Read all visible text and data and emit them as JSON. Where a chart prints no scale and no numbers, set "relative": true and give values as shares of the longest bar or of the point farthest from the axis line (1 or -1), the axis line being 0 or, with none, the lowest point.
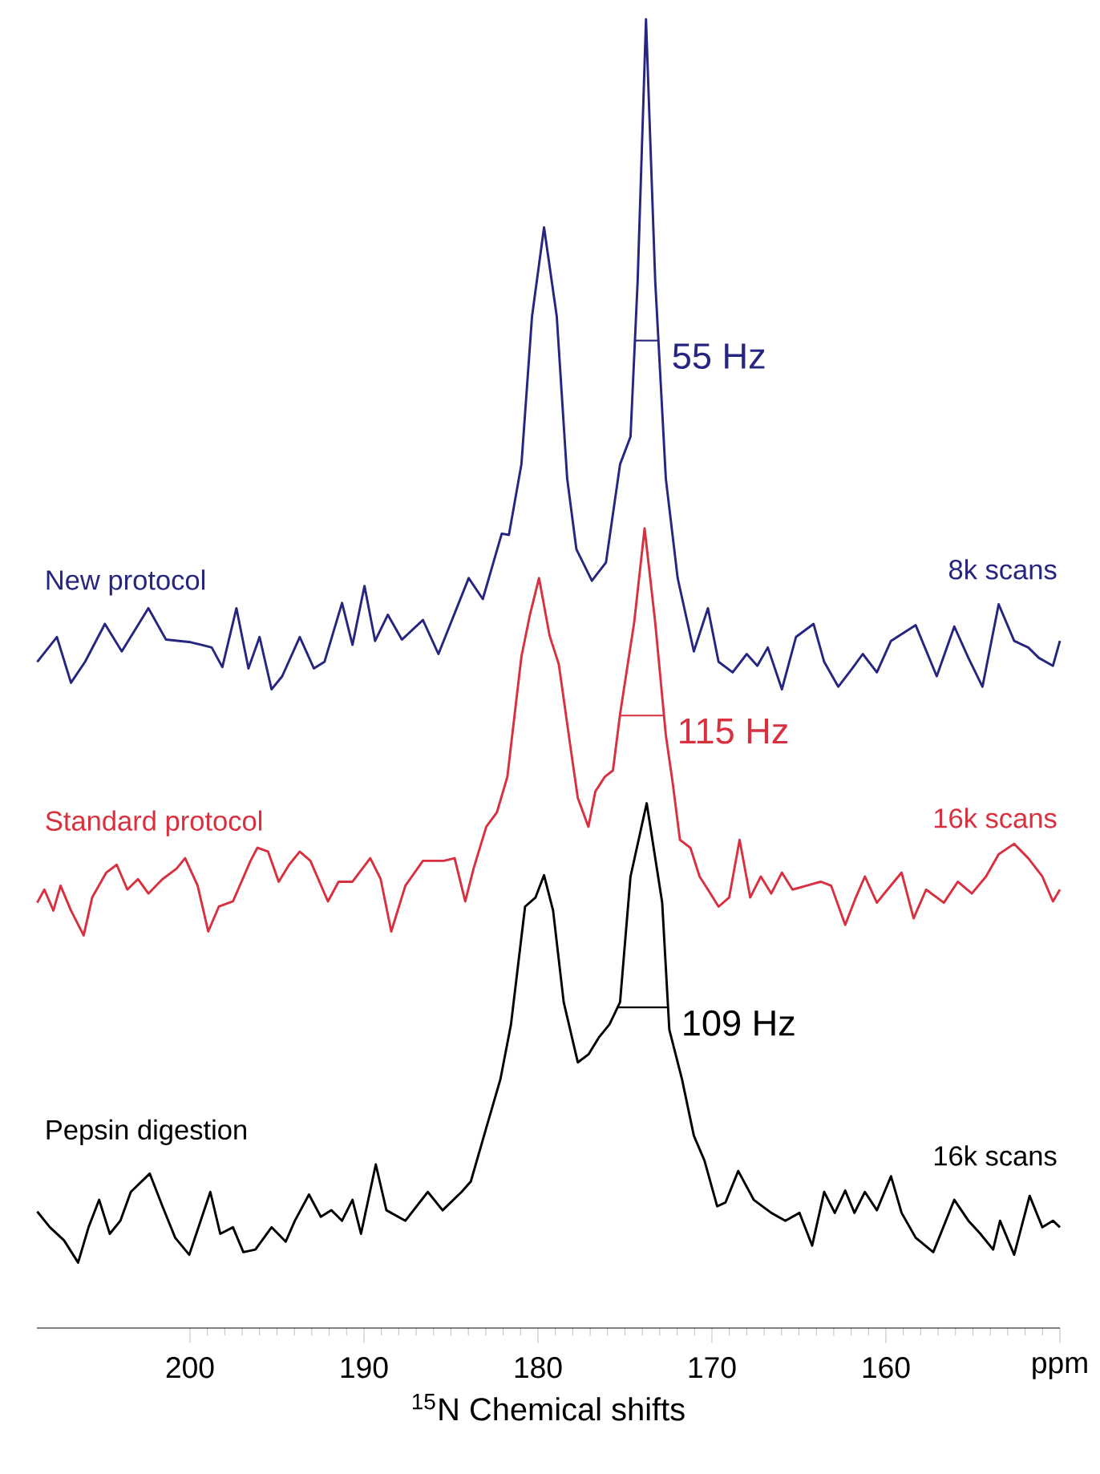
{
  "chart_data": {
    "type": "line",
    "relative": true,
    "xlabel": "$^{15}$N Chemical shifts",
    "xlim": [
      208.8,
      150
    ],
    "xticks": [
      200,
      190,
      180,
      170,
      160,
      {
        "value": 150,
        "label": "ppm"
      }
    ],
    "series": [
      {
        "name": "New protocol",
        "color": "#262680",
        "x": [
          208.78,
          207.65,
          206.84,
          206.03,
          204.89,
          203.92,
          202.39,
          201.38,
          199.96,
          198.75,
          198.14,
          197.33,
          196.64,
          196.0,
          195.31,
          194.7,
          193.69,
          192.88,
          192.27,
          191.26,
          190.66,
          189.97,
          189.36,
          188.63,
          187.82,
          186.61,
          185.72,
          183.98,
          183.17,
          182.08,
          181.67,
          180.95,
          180.34,
          179.65,
          178.92,
          178.32,
          177.79,
          176.9,
          176.09,
          175.28,
          174.68,
          174.27,
          173.79,
          173.26,
          172.65,
          171.97,
          171.04,
          170.23,
          169.62,
          168.81,
          168.0,
          167.39,
          166.79,
          165.98,
          165.17,
          164.16,
          163.55,
          162.74,
          161.93,
          161.33,
          160.52,
          159.71,
          158.29,
          157.08,
          156.07,
          155.26,
          154.45,
          153.52,
          152.63,
          151.82,
          151.21,
          150.4,
          150.0
        ],
        "values": [
          0.509,
          0.528,
          0.493,
          0.509,
          0.538,
          0.517,
          0.55,
          0.526,
          0.524,
          0.52,
          0.505,
          0.55,
          0.504,
          0.528,
          0.488,
          0.498,
          0.528,
          0.504,
          0.509,
          0.554,
          0.522,
          0.567,
          0.525,
          0.545,
          0.526,
          0.541,
          0.515,
          0.573,
          0.557,
          0.607,
          0.606,
          0.66,
          0.773,
          0.841,
          0.773,
          0.649,
          0.595,
          0.571,
          0.585,
          0.66,
          0.681,
          0.8,
          1.0,
          0.8,
          0.649,
          0.573,
          0.517,
          0.55,
          0.509,
          0.501,
          0.515,
          0.506,
          0.52,
          0.488,
          0.528,
          0.538,
          0.509,
          0.49,
          0.504,
          0.515,
          0.501,
          0.525,
          0.537,
          0.498,
          0.536,
          0.512,
          0.49,
          0.553,
          0.525,
          0.52,
          0.512,
          0.506,
          0.525
        ]
      },
      {
        "name": "Standard protocol",
        "color": "#d9303f",
        "x": [
          208.78,
          208.37,
          207.85,
          207.44,
          206.84,
          206.11,
          205.62,
          204.81,
          204.21,
          203.6,
          202.99,
          202.39,
          201.58,
          200.77,
          200.28,
          199.56,
          198.95,
          198.34,
          197.53,
          196.52,
          196.12,
          195.51,
          194.9,
          194.3,
          193.69,
          193.08,
          192.07,
          191.46,
          190.66,
          189.64,
          189.04,
          188.43,
          187.62,
          186.61,
          185.4,
          184.79,
          184.18,
          183.7,
          182.97,
          182.36,
          181.76,
          180.95,
          180.46,
          179.94,
          179.33,
          178.8,
          178.11,
          177.71,
          177.1,
          176.7,
          176.17,
          175.69,
          175.28,
          174.47,
          173.87,
          173.26,
          172.65,
          172.25,
          171.84,
          171.24,
          170.71,
          170.23,
          169.62,
          169.01,
          168.41,
          167.8,
          167.19,
          166.59,
          165.98,
          165.37,
          164.56,
          163.75,
          163.15,
          162.34,
          161.73,
          161.21,
          160.52,
          159.91,
          159.1,
          158.41,
          157.69,
          156.67,
          155.87,
          155.06,
          154.25,
          153.52,
          152.63,
          151.82,
          151.01,
          150.4,
          150.0
        ],
        "values": [
          0.325,
          0.335,
          0.319,
          0.338,
          0.319,
          0.3,
          0.329,
          0.348,
          0.354,
          0.335,
          0.343,
          0.332,
          0.343,
          0.351,
          0.359,
          0.338,
          0.303,
          0.322,
          0.326,
          0.357,
          0.367,
          0.364,
          0.341,
          0.354,
          0.364,
          0.357,
          0.326,
          0.341,
          0.341,
          0.359,
          0.343,
          0.303,
          0.338,
          0.357,
          0.357,
          0.359,
          0.326,
          0.351,
          0.383,
          0.394,
          0.421,
          0.513,
          0.545,
          0.573,
          0.529,
          0.507,
          0.442,
          0.405,
          0.383,
          0.41,
          0.421,
          0.426,
          0.469,
          0.539,
          0.611,
          0.539,
          0.453,
          0.416,
          0.373,
          0.367,
          0.345,
          0.335,
          0.322,
          0.329,
          0.373,
          0.329,
          0.345,
          0.332,
          0.348,
          0.335,
          0.338,
          0.341,
          0.338,
          0.308,
          0.329,
          0.345,
          0.325,
          0.335,
          0.348,
          0.313,
          0.335,
          0.325,
          0.341,
          0.332,
          0.345,
          0.362,
          0.37,
          0.359,
          0.345,
          0.326,
          0.335
        ]
      },
      {
        "name": "Pepsin digestion",
        "color": "#000000",
        "x": [
          208.78,
          208.05,
          207.24,
          206.43,
          205.83,
          205.22,
          204.61,
          204.0,
          203.4,
          202.31,
          201.58,
          200.85,
          200.04,
          198.83,
          198.26,
          197.53,
          196.93,
          196.24,
          195.31,
          194.5,
          193.97,
          193.16,
          192.48,
          191.87,
          191.26,
          190.66,
          190.17,
          189.32,
          188.71,
          187.62,
          186.33,
          185.48,
          184.39,
          183.86,
          182.97,
          182.16,
          181.55,
          180.74,
          180.14,
          179.65,
          179.13,
          178.52,
          177.71,
          177.1,
          176.5,
          175.89,
          175.28,
          174.68,
          173.75,
          172.86,
          172.45,
          171.72,
          171.04,
          170.43,
          169.7,
          169.22,
          168.49,
          167.6,
          166.59,
          165.78,
          164.97,
          164.24,
          163.55,
          162.94,
          162.34,
          161.81,
          161.21,
          160.52,
          159.71,
          159.1,
          158.29,
          157.28,
          156.07,
          155.26,
          154.57,
          153.84,
          153.44,
          152.63,
          151.74,
          151.01,
          150.4,
          150.0
        ],
        "values": [
          0.089,
          0.077,
          0.067,
          0.05,
          0.077,
          0.098,
          0.072,
          0.082,
          0.104,
          0.118,
          0.093,
          0.069,
          0.056,
          0.104,
          0.072,
          0.077,
          0.058,
          0.06,
          0.077,
          0.066,
          0.082,
          0.102,
          0.085,
          0.09,
          0.082,
          0.098,
          0.072,
          0.125,
          0.09,
          0.082,
          0.104,
          0.09,
          0.104,
          0.112,
          0.153,
          0.19,
          0.232,
          0.322,
          0.329,
          0.346,
          0.319,
          0.249,
          0.203,
          0.209,
          0.222,
          0.232,
          0.249,
          0.345,
          0.401,
          0.325,
          0.228,
          0.19,
          0.147,
          0.128,
          0.093,
          0.096,
          0.12,
          0.098,
          0.088,
          0.082,
          0.088,
          0.063,
          0.104,
          0.088,
          0.105,
          0.088,
          0.104,
          0.09,
          0.116,
          0.088,
          0.069,
          0.058,
          0.098,
          0.082,
          0.072,
          0.06,
          0.082,
          0.056,
          0.101,
          0.077,
          0.082,
          0.077
        ]
      }
    ],
    "annotations": [
      "55 Hz",
      "115 Hz",
      "109 Hz",
      "8k scans",
      "16k scans",
      "16k scans"
    ]
  }
}
